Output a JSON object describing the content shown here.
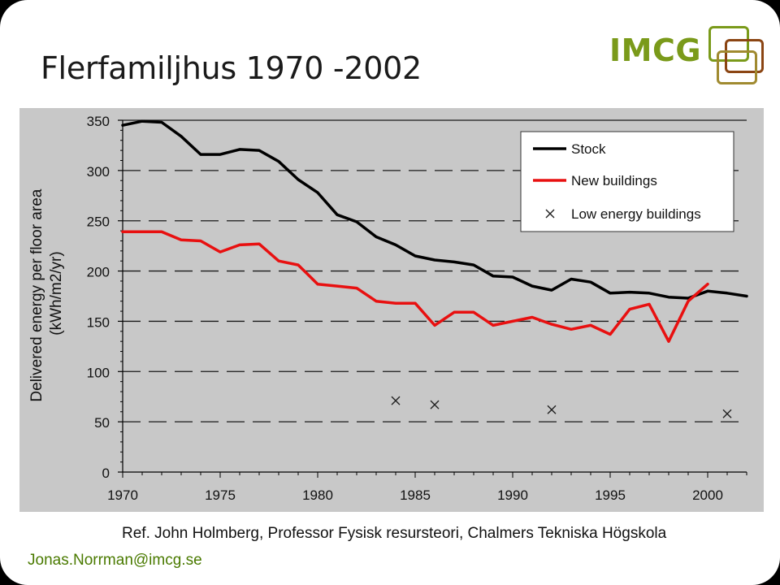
{
  "slide": {
    "title": "Flerfamiljhus 1970 -2002",
    "logo_text": "IMCG",
    "reference": "Ref. John Holmberg, Professor Fysisk resursteori, Chalmers Tekniska Högskola",
    "email": "Jonas.Norrman@imcg.se",
    "colors": {
      "logo_green": "#7a9a1a",
      "logo_brown": "#8b4513",
      "logo_olive": "#a08a30",
      "plot_background": "#c8c8c8",
      "email_green": "#4a7a00"
    }
  },
  "chart_data": {
    "type": "line",
    "title": "",
    "xlabel": "",
    "ylabel": "Delivered energy per floor area (kWh/m2/yr)",
    "ylabel_lines": [
      "Delivered energy per floor area",
      "(kWh/m2/yr)"
    ],
    "xlim": [
      1970,
      2002
    ],
    "ylim": [
      0,
      350
    ],
    "xticks": [
      "1970",
      "1975",
      "1980",
      "1985",
      "1990",
      "1995",
      "2000"
    ],
    "yticks": [
      "0",
      "50",
      "100",
      "150",
      "200",
      "250",
      "300",
      "350"
    ],
    "grid": "horizontal dashed",
    "legend_position": "top-right",
    "series": [
      {
        "name": "Stock",
        "color": "#000000",
        "marker": "none",
        "points": [
          [
            1970,
            345
          ],
          [
            1971,
            349
          ],
          [
            1972,
            348
          ],
          [
            1973,
            334
          ],
          [
            1974,
            316
          ],
          [
            1975,
            316
          ],
          [
            1976,
            321
          ],
          [
            1977,
            320
          ],
          [
            1978,
            309
          ],
          [
            1979,
            291
          ],
          [
            1980,
            278
          ],
          [
            1981,
            256
          ],
          [
            1982,
            249
          ],
          [
            1983,
            234
          ],
          [
            1984,
            226
          ],
          [
            1985,
            215
          ],
          [
            1986,
            211
          ],
          [
            1987,
            209
          ],
          [
            1988,
            206
          ],
          [
            1989,
            195
          ],
          [
            1990,
            194
          ],
          [
            1991,
            185
          ],
          [
            1992,
            181
          ],
          [
            1993,
            192
          ],
          [
            1994,
            189
          ],
          [
            1995,
            178
          ],
          [
            1996,
            179
          ],
          [
            1997,
            178
          ],
          [
            1998,
            174
          ],
          [
            1999,
            173
          ],
          [
            2000,
            180
          ],
          [
            2001,
            178
          ],
          [
            2002,
            175
          ]
        ]
      },
      {
        "name": "New buildings",
        "color": "#e81010",
        "marker": "none",
        "points": [
          [
            1970,
            239
          ],
          [
            1971,
            239
          ],
          [
            1972,
            239
          ],
          [
            1973,
            231
          ],
          [
            1974,
            230
          ],
          [
            1975,
            219
          ],
          [
            1976,
            226
          ],
          [
            1977,
            227
          ],
          [
            1978,
            210
          ],
          [
            1979,
            206
          ],
          [
            1980,
            187
          ],
          [
            1981,
            185
          ],
          [
            1982,
            183
          ],
          [
            1983,
            170
          ],
          [
            1984,
            168
          ],
          [
            1985,
            168
          ],
          [
            1986,
            146
          ],
          [
            1987,
            159
          ],
          [
            1988,
            159
          ],
          [
            1989,
            146
          ],
          [
            1990,
            150
          ],
          [
            1991,
            154
          ],
          [
            1992,
            147
          ],
          [
            1993,
            142
          ],
          [
            1994,
            146
          ],
          [
            1995,
            137
          ],
          [
            1996,
            162
          ],
          [
            1997,
            167
          ],
          [
            1998,
            130
          ],
          [
            1999,
            170
          ],
          [
            2000,
            187
          ]
        ]
      },
      {
        "name": "Low energy buildings",
        "color": "#222222",
        "marker": "x",
        "points": [
          [
            1984,
            71
          ],
          [
            1986,
            67
          ],
          [
            1992,
            62
          ],
          [
            2001,
            58
          ]
        ]
      }
    ]
  }
}
